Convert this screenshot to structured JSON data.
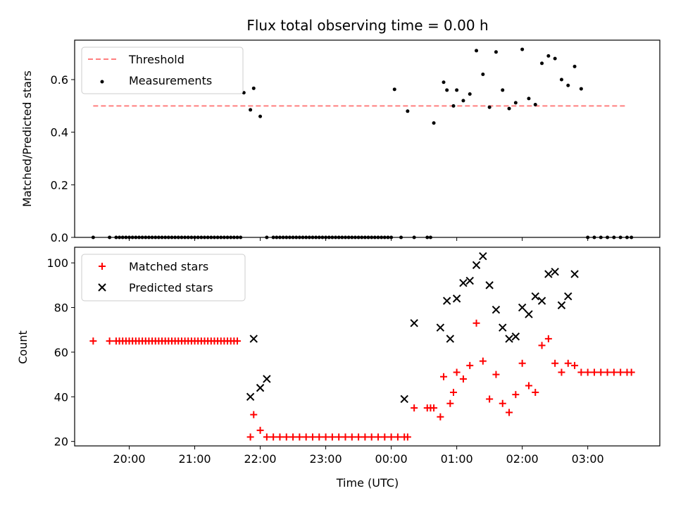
{
  "colors": {
    "threshold": "#ff7f7f",
    "measurements": "#000000",
    "matched": "#ff0000",
    "predicted": "#000000"
  },
  "chart_data": [
    {
      "type": "scatter",
      "title": "Flux total observing time = 0.00 h",
      "xlabel": "",
      "ylabel": "Matched/Predicted stars",
      "xlim": [
        "19:10",
        "04:06"
      ],
      "ylim": [
        0,
        0.75
      ],
      "x_ticks": [
        "20:00",
        "21:00",
        "22:00",
        "23:00",
        "00:00",
        "01:00",
        "02:00",
        "03:00"
      ],
      "y_ticks": [
        "0.0",
        "0.2",
        "0.4",
        "0.6"
      ],
      "legend": {
        "position": "top-left",
        "entries": [
          "Threshold",
          "Measurements"
        ]
      },
      "series": [
        {
          "name": "Threshold",
          "kind": "line",
          "style": "dashed",
          "x": [
            "19:27",
            "03:36"
          ],
          "y": [
            0.5,
            0.5
          ]
        },
        {
          "name": "Measurements",
          "kind": "scatter",
          "marker": "dot",
          "x": [
            "19:27",
            "19:42",
            "19:48",
            "19:51",
            "19:54",
            "19:57",
            "20:00",
            "20:03",
            "20:06",
            "20:09",
            "20:12",
            "20:15",
            "20:18",
            "20:21",
            "20:24",
            "20:27",
            "20:30",
            "20:33",
            "20:36",
            "20:39",
            "20:42",
            "20:45",
            "20:48",
            "20:51",
            "20:54",
            "20:57",
            "21:00",
            "21:03",
            "21:06",
            "21:09",
            "21:12",
            "21:15",
            "21:18",
            "21:21",
            "21:24",
            "21:27",
            "21:30",
            "21:33",
            "21:36",
            "21:39",
            "21:42",
            "21:45",
            "21:51",
            "21:54",
            "22:00",
            "22:06",
            "22:12",
            "22:15",
            "22:18",
            "22:21",
            "22:24",
            "22:27",
            "22:30",
            "22:33",
            "22:36",
            "22:39",
            "22:42",
            "22:45",
            "22:48",
            "22:51",
            "22:54",
            "22:57",
            "23:00",
            "23:03",
            "23:06",
            "23:09",
            "23:12",
            "23:15",
            "23:18",
            "23:21",
            "23:24",
            "23:27",
            "23:30",
            "23:33",
            "23:36",
            "23:39",
            "23:42",
            "23:45",
            "23:48",
            "23:51",
            "23:54",
            "23:57",
            "00:00",
            "00:03",
            "00:09",
            "00:15",
            "00:21",
            "00:33",
            "00:36",
            "00:39",
            "00:48",
            "00:51",
            "00:57",
            "01:00",
            "01:06",
            "01:12",
            "01:18",
            "01:24",
            "01:30",
            "01:36",
            "01:42",
            "01:48",
            "01:54",
            "02:00",
            "02:06",
            "02:12",
            "02:18",
            "02:24",
            "02:30",
            "02:36",
            "02:42",
            "02:48",
            "02:54",
            "03:00",
            "03:06",
            "03:12",
            "03:18",
            "03:24",
            "03:30",
            "03:36",
            "03:40"
          ],
          "y": [
            0,
            0,
            0,
            0,
            0,
            0,
            0,
            0,
            0,
            0,
            0,
            0,
            0,
            0,
            0,
            0,
            0,
            0,
            0,
            0,
            0,
            0,
            0,
            0,
            0,
            0,
            0,
            0,
            0,
            0,
            0,
            0,
            0,
            0,
            0,
            0,
            0,
            0,
            0,
            0,
            0,
            0.55,
            0.485,
            0.567,
            0.46,
            0,
            0,
            0,
            0,
            0,
            0,
            0,
            0,
            0,
            0,
            0,
            0,
            0,
            0,
            0,
            0,
            0,
            0,
            0,
            0,
            0,
            0,
            0,
            0,
            0,
            0,
            0,
            0,
            0,
            0,
            0,
            0,
            0,
            0,
            0,
            0,
            0,
            0,
            0.563,
            0,
            0.48,
            0,
            0,
            0,
            0.435,
            0.59,
            0.56,
            0.5,
            0.56,
            0.52,
            0.545,
            0.71,
            0.62,
            0.495,
            0.705,
            0.56,
            0.49,
            0.512,
            0.715,
            0.528,
            0.505,
            0.662,
            0.69,
            0.68,
            0.6,
            0.578,
            0.65,
            0.565,
            0,
            0,
            0,
            0,
            0,
            0,
            0,
            0
          ]
        }
      ]
    },
    {
      "type": "scatter",
      "title": "",
      "xlabel": "Time (UTC)",
      "ylabel": "Count",
      "xlim": [
        "19:10",
        "04:06"
      ],
      "ylim": [
        18,
        107
      ],
      "x_ticks": [
        "20:00",
        "21:00",
        "22:00",
        "23:00",
        "00:00",
        "01:00",
        "02:00",
        "03:00"
      ],
      "y_ticks": [
        "20",
        "40",
        "60",
        "80",
        "100"
      ],
      "legend": {
        "position": "top-left",
        "entries": [
          "Matched stars",
          "Predicted stars"
        ]
      },
      "series": [
        {
          "name": "Matched stars",
          "kind": "scatter",
          "marker": "plus",
          "x": [
            "19:27",
            "19:42",
            "19:48",
            "19:51",
            "19:54",
            "19:57",
            "20:00",
            "20:03",
            "20:06",
            "20:09",
            "20:12",
            "20:15",
            "20:18",
            "20:21",
            "20:24",
            "20:27",
            "20:30",
            "20:33",
            "20:36",
            "20:39",
            "20:42",
            "20:45",
            "20:48",
            "20:51",
            "20:54",
            "20:57",
            "21:00",
            "21:03",
            "21:06",
            "21:09",
            "21:12",
            "21:15",
            "21:18",
            "21:21",
            "21:24",
            "21:27",
            "21:30",
            "21:33",
            "21:36",
            "21:39",
            "21:51",
            "21:54",
            "22:00",
            "22:06",
            "22:12",
            "22:18",
            "22:24",
            "22:30",
            "22:36",
            "22:42",
            "22:48",
            "22:54",
            "23:00",
            "23:06",
            "23:12",
            "23:18",
            "23:24",
            "23:30",
            "23:36",
            "23:42",
            "23:48",
            "23:54",
            "00:00",
            "00:06",
            "00:12",
            "00:15",
            "00:21",
            "00:33",
            "00:36",
            "00:39",
            "00:45",
            "00:48",
            "00:54",
            "00:57",
            "01:00",
            "01:06",
            "01:12",
            "01:18",
            "01:24",
            "01:30",
            "01:36",
            "01:42",
            "01:48",
            "01:54",
            "02:00",
            "02:06",
            "02:12",
            "02:18",
            "02:24",
            "02:30",
            "02:36",
            "02:42",
            "02:48",
            "02:54",
            "03:00",
            "03:06",
            "03:12",
            "03:18",
            "03:24",
            "03:30",
            "03:36",
            "03:40"
          ],
          "y": [
            65,
            65,
            65,
            65,
            65,
            65,
            65,
            65,
            65,
            65,
            65,
            65,
            65,
            65,
            65,
            65,
            65,
            65,
            65,
            65,
            65,
            65,
            65,
            65,
            65,
            65,
            65,
            65,
            65,
            65,
            65,
            65,
            65,
            65,
            65,
            65,
            65,
            65,
            65,
            65,
            22,
            32,
            25,
            22,
            22,
            22,
            22,
            22,
            22,
            22,
            22,
            22,
            22,
            22,
            22,
            22,
            22,
            22,
            22,
            22,
            22,
            22,
            22,
            22,
            22,
            22,
            35,
            35,
            35,
            35,
            31,
            49,
            37,
            42,
            51,
            48,
            54,
            73,
            56,
            39,
            50,
            37,
            33,
            41,
            55,
            45,
            42,
            63,
            66,
            55,
            51,
            55,
            54,
            51,
            51,
            51,
            51,
            51,
            51,
            51,
            51,
            51
          ]
        },
        {
          "name": "Predicted stars",
          "kind": "scatter",
          "marker": "x",
          "x": [
            "21:51",
            "21:54",
            "22:00",
            "22:06",
            "00:12",
            "00:21",
            "00:45",
            "00:51",
            "00:54",
            "01:00",
            "01:06",
            "01:12",
            "01:18",
            "01:24",
            "01:30",
            "01:36",
            "01:42",
            "01:48",
            "01:54",
            "02:00",
            "02:06",
            "02:12",
            "02:18",
            "02:24",
            "02:30",
            "02:36",
            "02:42",
            "02:48"
          ],
          "y": [
            40,
            66,
            44,
            48,
            39,
            73,
            71,
            83,
            66,
            84,
            91,
            92,
            99,
            103,
            90,
            79,
            71,
            66,
            67,
            80,
            77,
            85,
            83,
            95,
            96,
            81,
            85,
            95
          ]
        }
      ]
    }
  ]
}
